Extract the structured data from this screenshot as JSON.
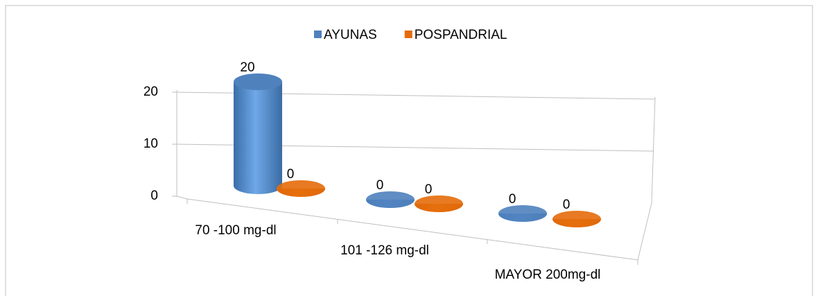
{
  "chart_data": {
    "type": "bar3d",
    "categories": [
      "70 -100 mg-dl",
      "101 -126 mg-dl",
      "MAYOR 200mg-dl"
    ],
    "series": [
      {
        "name": "AYUNAS",
        "color": "#4f81bd",
        "values": [
          20,
          0,
          0
        ]
      },
      {
        "name": "POSPANDRIAL",
        "color": "#e46c0a",
        "values": [
          0,
          0,
          0
        ]
      }
    ],
    "ylim": [
      0,
      20
    ],
    "yticks": [
      0,
      10,
      20
    ],
    "grid": true,
    "legend": "top"
  }
}
